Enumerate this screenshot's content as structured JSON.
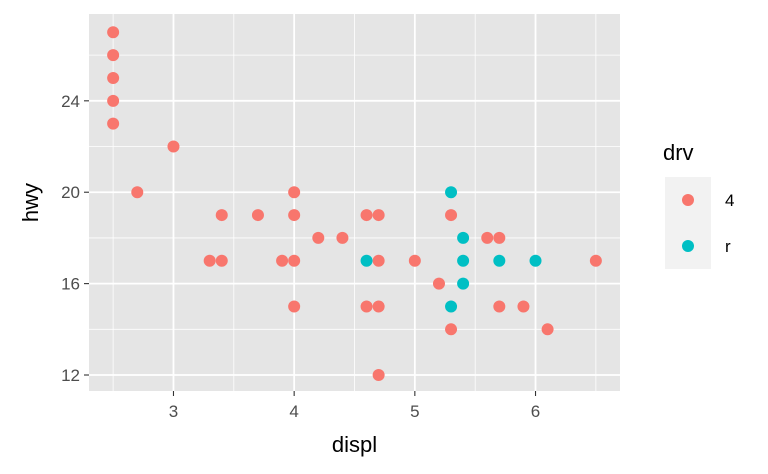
{
  "chart_data": {
    "type": "scatter",
    "title": "",
    "xlabel": "displ",
    "ylabel": "hwy",
    "xlim": [
      2.3,
      6.7
    ],
    "ylim": [
      11.3,
      27.8
    ],
    "x_ticks": [
      3,
      4,
      5,
      6
    ],
    "y_ticks": [
      12,
      16,
      20,
      24
    ],
    "grid": true,
    "panel_background": "#e5e5e5",
    "grid_color": "#ffffff",
    "legend": {
      "title": "drv",
      "position": "right",
      "entries": [
        {
          "label": "4",
          "color": "#F8766D"
        },
        {
          "label": "r",
          "color": "#00BFC4"
        }
      ]
    },
    "series": [
      {
        "name": "4",
        "color": "#F8766D",
        "points": [
          [
            2.5,
            27
          ],
          [
            2.5,
            26
          ],
          [
            2.5,
            25
          ],
          [
            2.5,
            24
          ],
          [
            2.5,
            23
          ],
          [
            2.7,
            20
          ],
          [
            3.0,
            22
          ],
          [
            3.3,
            17
          ],
          [
            3.4,
            17
          ],
          [
            3.4,
            19
          ],
          [
            3.7,
            19
          ],
          [
            3.9,
            17
          ],
          [
            4.0,
            17
          ],
          [
            4.0,
            19
          ],
          [
            4.0,
            20
          ],
          [
            4.0,
            15
          ],
          [
            4.2,
            18
          ],
          [
            4.4,
            18
          ],
          [
            4.6,
            19
          ],
          [
            4.6,
            15
          ],
          [
            4.7,
            19
          ],
          [
            4.7,
            17
          ],
          [
            4.7,
            15
          ],
          [
            4.7,
            12
          ],
          [
            5.0,
            17
          ],
          [
            5.2,
            16
          ],
          [
            5.3,
            19
          ],
          [
            5.3,
            14
          ],
          [
            5.6,
            18
          ],
          [
            5.7,
            18
          ],
          [
            5.7,
            15
          ],
          [
            5.9,
            15
          ],
          [
            6.1,
            14
          ],
          [
            6.5,
            17
          ]
        ]
      },
      {
        "name": "r",
        "color": "#00BFC4",
        "points": [
          [
            4.6,
            17
          ],
          [
            5.3,
            20
          ],
          [
            5.3,
            15
          ],
          [
            5.4,
            18
          ],
          [
            5.4,
            17
          ],
          [
            5.4,
            16
          ],
          [
            5.7,
            17
          ],
          [
            6.0,
            17
          ]
        ]
      }
    ]
  }
}
